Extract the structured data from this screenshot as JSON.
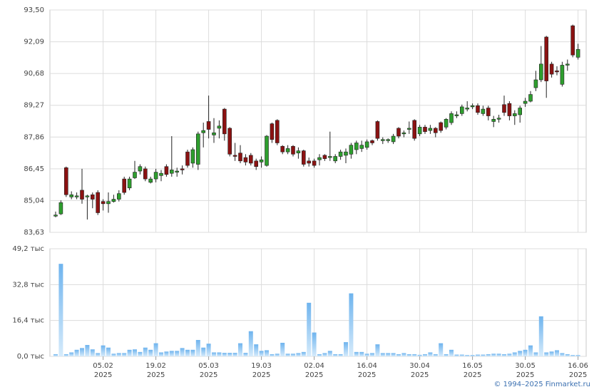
{
  "chart_data": {
    "type": "candlestick",
    "x": [
      "2025-01-23",
      "2025-01-24",
      "2025-01-27",
      "2025-01-28",
      "2025-01-29",
      "2025-01-30",
      "2025-01-31",
      "2025-02-03",
      "2025-02-04",
      "2025-02-05",
      "2025-02-06",
      "2025-02-07",
      "2025-02-10",
      "2025-02-11",
      "2025-02-12",
      "2025-02-13",
      "2025-02-14",
      "2025-02-17",
      "2025-02-18",
      "2025-02-19",
      "2025-02-20",
      "2025-02-21",
      "2025-02-24",
      "2025-02-25",
      "2025-02-26",
      "2025-02-27",
      "2025-02-28",
      "2025-03-03",
      "2025-03-04",
      "2025-03-05",
      "2025-03-06",
      "2025-03-07",
      "2025-03-10",
      "2025-03-11",
      "2025-03-12",
      "2025-03-13",
      "2025-03-14",
      "2025-03-17",
      "2025-03-18",
      "2025-03-19",
      "2025-03-20",
      "2025-03-21",
      "2025-03-24",
      "2025-03-25",
      "2025-03-26",
      "2025-03-27",
      "2025-03-28",
      "2025-03-31",
      "2025-04-01",
      "2025-04-02",
      "2025-04-03",
      "2025-04-04",
      "2025-04-07",
      "2025-04-08",
      "2025-04-09",
      "2025-04-10",
      "2025-04-11",
      "2025-04-14",
      "2025-04-15",
      "2025-04-16",
      "2025-04-17",
      "2025-04-18",
      "2025-04-21",
      "2025-04-22",
      "2025-04-23",
      "2025-04-24",
      "2025-04-25",
      "2025-04-28",
      "2025-04-29",
      "2025-04-30",
      "2025-05-02",
      "2025-05-05",
      "2025-05-06",
      "2025-05-07",
      "2025-05-08",
      "2025-05-12",
      "2025-05-13",
      "2025-05-14",
      "2025-05-15",
      "2025-05-16",
      "2025-05-19",
      "2025-05-20",
      "2025-05-21",
      "2025-05-22",
      "2025-05-23",
      "2025-05-26",
      "2025-05-27",
      "2025-05-28",
      "2025-05-29",
      "2025-05-30",
      "2025-06-02",
      "2025-06-03",
      "2025-06-04",
      "2025-06-05",
      "2025-06-06",
      "2025-06-09",
      "2025-06-10",
      "2025-06-11",
      "2025-06-13",
      "2025-06-16"
    ],
    "open": [
      84.35,
      84.45,
      86.5,
      85.2,
      85.2,
      85.5,
      85.2,
      85.3,
      85.4,
      85.0,
      84.9,
      85.0,
      85.1,
      86.0,
      85.6,
      86.05,
      86.35,
      86.45,
      85.85,
      86.0,
      86.15,
      86.55,
      86.25,
      86.3,
      86.45,
      87.2,
      86.7,
      86.65,
      88.05,
      88.55,
      87.95,
      88.25,
      89.1,
      88.25,
      87.05,
      87.15,
      86.95,
      87.05,
      86.8,
      86.75,
      86.6,
      88.45,
      88.6,
      87.45,
      87.2,
      87.45,
      87.15,
      87.25,
      86.8,
      86.8,
      86.85,
      87.05,
      86.95,
      86.8,
      87.0,
      87.05,
      87.1,
      87.3,
      87.35,
      87.4,
      87.7,
      88.55,
      87.7,
      87.7,
      87.65,
      88.25,
      88.0,
      88.2,
      88.6,
      88.0,
      88.3,
      88.15,
      88.25,
      88.5,
      88.3,
      88.5,
      88.8,
      88.9,
      89.1,
      89.2,
      89.25,
      88.9,
      89.15,
      88.55,
      88.65,
      89.3,
      89.35,
      88.8,
      88.85,
      89.35,
      89.45,
      90.05,
      90.4,
      92.3,
      91.1,
      90.8,
      90.2,
      91.05,
      92.8,
      91.4
    ],
    "high": [
      84.55,
      85.05,
      86.55,
      85.45,
      85.4,
      86.45,
      85.3,
      85.4,
      85.5,
      85.1,
      85.4,
      85.3,
      85.5,
      86.1,
      86.1,
      86.8,
      86.65,
      86.55,
      86.1,
      86.45,
      86.4,
      86.65,
      87.9,
      86.5,
      86.6,
      87.3,
      87.4,
      88.1,
      88.5,
      89.7,
      88.7,
      88.6,
      89.15,
      88.3,
      87.6,
      87.5,
      87.1,
      87.15,
      86.9,
      87.0,
      87.95,
      88.5,
      88.65,
      87.5,
      87.5,
      87.5,
      87.4,
      87.3,
      86.95,
      86.9,
      87.1,
      87.1,
      88.1,
      87.1,
      87.3,
      87.35,
      87.6,
      87.7,
      87.7,
      87.75,
      87.75,
      88.6,
      87.85,
      87.8,
      88.0,
      88.3,
      88.15,
      88.55,
      88.65,
      88.4,
      88.4,
      88.4,
      88.3,
      88.55,
      88.7,
      89.0,
      89.0,
      89.3,
      89.45,
      89.35,
      89.35,
      89.25,
      89.25,
      88.8,
      88.85,
      89.7,
      89.45,
      89.05,
      89.25,
      89.6,
      89.9,
      90.8,
      91.9,
      92.35,
      91.2,
      91.0,
      91.2,
      91.3,
      92.85,
      92.0
    ],
    "low": [
      84.3,
      84.4,
      85.2,
      85.1,
      85.1,
      84.9,
      84.2,
      84.7,
      84.4,
      84.6,
      84.5,
      84.95,
      85.0,
      85.3,
      85.5,
      86.0,
      86.2,
      85.9,
      85.8,
      85.85,
      85.9,
      86.1,
      86.1,
      86.1,
      86.2,
      86.5,
      86.5,
      86.4,
      87.4,
      87.8,
      87.6,
      87.8,
      87.7,
      87.0,
      86.8,
      86.7,
      86.6,
      86.6,
      86.4,
      86.5,
      86.55,
      87.6,
      87.5,
      87.1,
      87.1,
      87.0,
      86.9,
      86.55,
      86.55,
      86.5,
      86.6,
      86.8,
      86.8,
      86.7,
      86.85,
      86.7,
      86.9,
      87.1,
      87.2,
      87.3,
      87.5,
      87.7,
      87.55,
      87.6,
      87.55,
      87.8,
      87.85,
      88.0,
      87.7,
      87.9,
      88.0,
      88.0,
      87.85,
      88.05,
      88.2,
      88.4,
      88.7,
      88.8,
      89.0,
      89.1,
      88.85,
      88.8,
      88.6,
      88.3,
      88.5,
      88.8,
      88.6,
      88.4,
      88.5,
      89.2,
      89.4,
      89.9,
      90.3,
      89.6,
      90.5,
      90.6,
      90.1,
      90.8,
      91.4,
      91.3
    ],
    "close": [
      84.4,
      84.95,
      85.3,
      85.3,
      85.25,
      85.1,
      85.25,
      85.1,
      84.5,
      84.9,
      85.0,
      85.1,
      85.35,
      85.4,
      86.0,
      86.3,
      86.55,
      86.0,
      86.0,
      86.3,
      86.25,
      86.2,
      86.4,
      86.35,
      86.4,
      86.6,
      87.3,
      88.0,
      88.15,
      88.2,
      88.05,
      88.35,
      88.0,
      87.1,
      87.0,
      86.8,
      86.75,
      86.7,
      86.55,
      86.85,
      87.9,
      87.75,
      87.6,
      87.2,
      87.35,
      87.1,
      87.25,
      86.65,
      86.7,
      86.6,
      86.95,
      86.9,
      87.0,
      87.0,
      87.2,
      87.2,
      87.5,
      87.6,
      87.5,
      87.65,
      87.6,
      87.8,
      87.75,
      87.75,
      87.9,
      87.9,
      88.05,
      88.25,
      87.8,
      88.3,
      88.1,
      88.25,
      88.05,
      88.15,
      88.65,
      88.9,
      88.85,
      89.2,
      89.15,
      89.25,
      88.95,
      89.1,
      88.8,
      88.65,
      88.7,
      88.95,
      88.8,
      88.9,
      89.15,
      89.45,
      89.75,
      90.4,
      91.1,
      90.35,
      90.65,
      90.75,
      91.05,
      91.1,
      91.5,
      91.75
    ],
    "up_color": "#2e9e2e",
    "down_color": "#8b1212",
    "ylim": [
      83.63,
      93.5
    ],
    "yticks": [
      {
        "value": 83.63,
        "label": "83,63"
      },
      {
        "value": 85.04,
        "label": "85,04"
      },
      {
        "value": 86.45,
        "label": "86,45"
      },
      {
        "value": 87.86,
        "label": "87,86"
      },
      {
        "value": 89.27,
        "label": "89,27"
      },
      {
        "value": 90.68,
        "label": "90,68"
      },
      {
        "value": 92.09,
        "label": "92,09"
      },
      {
        "value": 93.5,
        "label": "93,50"
      }
    ],
    "xticks": [
      {
        "value": "2025-02-05",
        "label": "05.02\n2025"
      },
      {
        "value": "2025-02-19",
        "label": "19.02\n2025"
      },
      {
        "value": "2025-03-05",
        "label": "05.03\n2025"
      },
      {
        "value": "2025-03-19",
        "label": "19.03\n2025"
      },
      {
        "value": "2025-04-02",
        "label": "02.04\n2025"
      },
      {
        "value": "2025-04-16",
        "label": "16.04\n2025"
      },
      {
        "value": "2025-04-30",
        "label": "30.04\n2025"
      },
      {
        "value": "2025-05-16",
        "label": "16.05\n2025"
      },
      {
        "value": "2025-05-30",
        "label": "30.05\n2025"
      },
      {
        "value": "2025-06-16",
        "label": "16.06\n2025"
      }
    ],
    "grid": true,
    "volume": {
      "color": "#7dbdf0",
      "values": [
        1.0,
        42.3,
        1.0,
        1.8,
        3.0,
        3.8,
        5.2,
        3.2,
        1.5,
        5.0,
        4.0,
        1.2,
        1.5,
        1.5,
        3.0,
        3.2,
        2.0,
        4.0,
        3.0,
        6.0,
        1.8,
        2.2,
        2.5,
        2.5,
        3.8,
        3.0,
        3.0,
        7.5,
        4.0,
        5.8,
        1.8,
        1.8,
        1.6,
        1.6,
        1.6,
        6.0,
        1.6,
        11.5,
        5.5,
        2.5,
        2.8,
        1.0,
        1.2,
        6.2,
        1.2,
        1.2,
        1.5,
        2.0,
        24.5,
        10.9,
        1.0,
        1.5,
        2.5,
        1.0,
        1.0,
        6.5,
        28.8,
        2.0,
        2.0,
        1.2,
        1.5,
        5.5,
        1.5,
        1.5,
        1.5,
        1.0,
        1.5,
        1.0,
        1.0,
        0.7,
        1.0,
        1.8,
        1.0,
        6.0,
        1.0,
        3.0,
        0.8,
        0.8,
        0.6,
        0.6,
        0.8,
        0.8,
        1.0,
        1.2,
        1.2,
        1.0,
        1.2,
        1.8,
        2.5,
        3.0,
        5.0,
        1.8,
        18.3,
        1.8,
        2.2,
        2.8,
        1.5,
        1.0,
        0.6,
        0.6
      ],
      "ylim": [
        0,
        49.2
      ],
      "yticks": [
        {
          "value": 0,
          "label": "0,0 тыс"
        },
        {
          "value": 16.4,
          "label": "16,4 тыс"
        },
        {
          "value": 32.8,
          "label": "32,8 тыс"
        },
        {
          "value": 49.2,
          "label": "49,2 тыс"
        }
      ]
    }
  },
  "footer": "© 1994–2025 Finmarket.ru"
}
